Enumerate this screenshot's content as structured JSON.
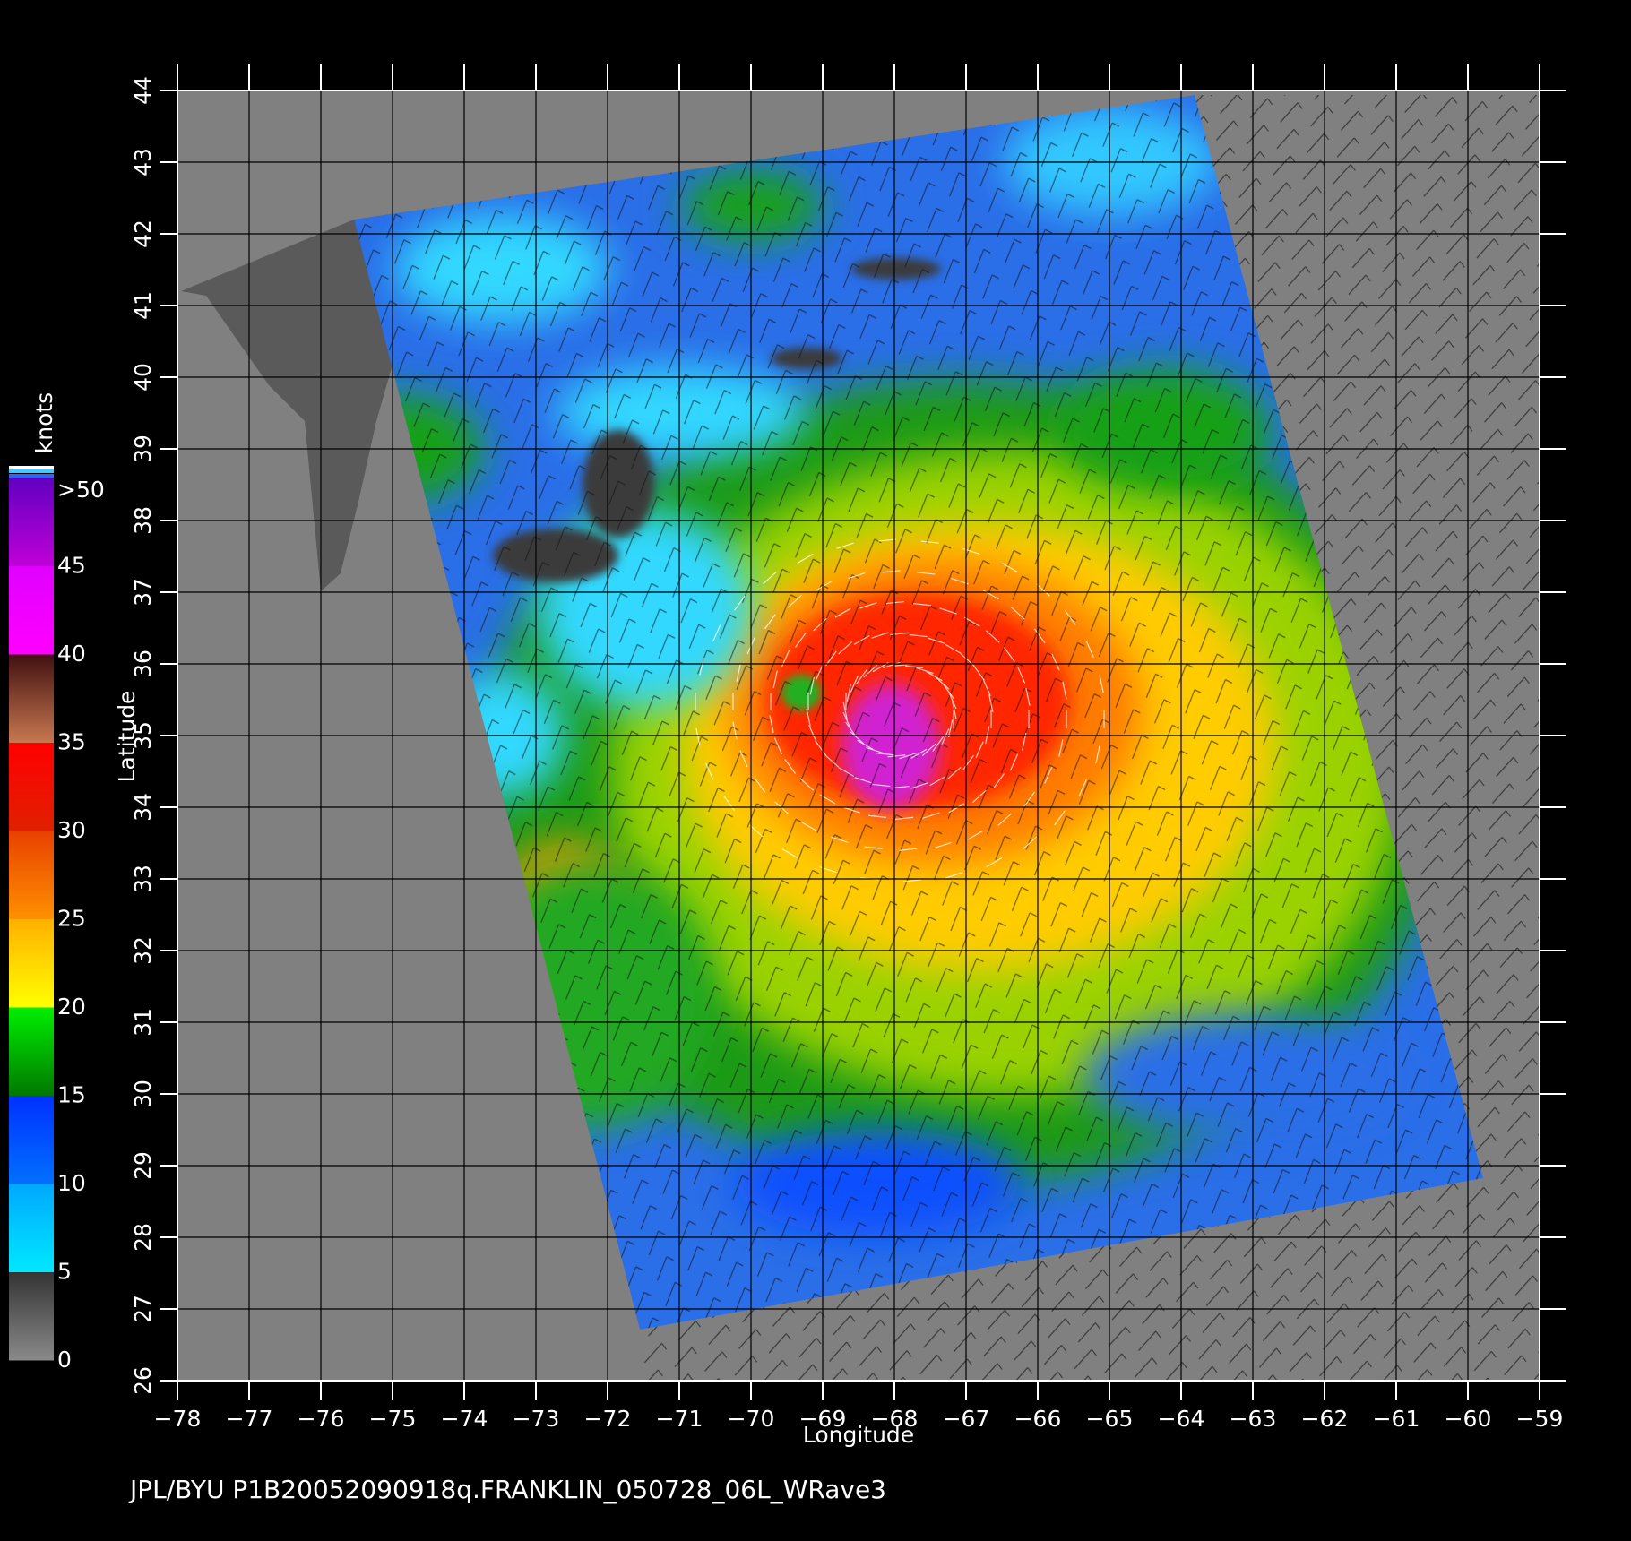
{
  "map": {
    "xlabel": "Longitude",
    "ylabel": "Latitude",
    "lon_ticks": [
      "-78",
      "-77",
      "-76",
      "-75",
      "-74",
      "-73",
      "-72",
      "-71",
      "-70",
      "-69",
      "-68",
      "-67",
      "-66",
      "-65",
      "-64",
      "-63",
      "-62",
      "-61",
      "-60",
      "-59"
    ],
    "lat_ticks": [
      "26",
      "27",
      "28",
      "29",
      "30",
      "31",
      "32",
      "33",
      "34",
      "35",
      "36",
      "37",
      "38",
      "39",
      "40",
      "41",
      "42",
      "43",
      "44"
    ],
    "footer": "JPL/BYU  P1B20052090918q.FRANKLIN_050728_06L_WRave3",
    "storm_center": {
      "lon": -69.3,
      "lat": 35.6
    },
    "background_color": "#808080",
    "land_color": "#5a5a5a"
  },
  "colorbar": {
    "unit": "knots",
    "labels": [
      ">50",
      "45",
      "40",
      "35",
      "30",
      "25",
      "20",
      "15",
      "10",
      "5",
      "0"
    ],
    "segments": [
      {
        "from": 0,
        "to": 5,
        "colors": [
          "#8a8a8a",
          "#333333"
        ]
      },
      {
        "from": 5,
        "to": 10,
        "colors": [
          "#00e8ff",
          "#00a8ff"
        ]
      },
      {
        "from": 10,
        "to": 15,
        "colors": [
          "#0070ff",
          "#0030ff"
        ]
      },
      {
        "from": 15,
        "to": 20,
        "colors": [
          "#007800",
          "#00f000"
        ]
      },
      {
        "from": 20,
        "to": 25,
        "colors": [
          "#ffff00",
          "#ffb000"
        ]
      },
      {
        "from": 25,
        "to": 30,
        "colors": [
          "#ff9000",
          "#e84000"
        ]
      },
      {
        "from": 30,
        "to": 35,
        "colors": [
          "#e02000",
          "#ff0000"
        ]
      },
      {
        "from": 35,
        "to": 40,
        "colors": [
          "#c87850",
          "#401010"
        ]
      },
      {
        "from": 40,
        "to": 45,
        "colors": [
          "#ff00ff",
          "#e000ff"
        ]
      },
      {
        "from": 45,
        "to": 50,
        "colors": [
          "#c000d8",
          "#6000c0"
        ]
      }
    ]
  }
}
